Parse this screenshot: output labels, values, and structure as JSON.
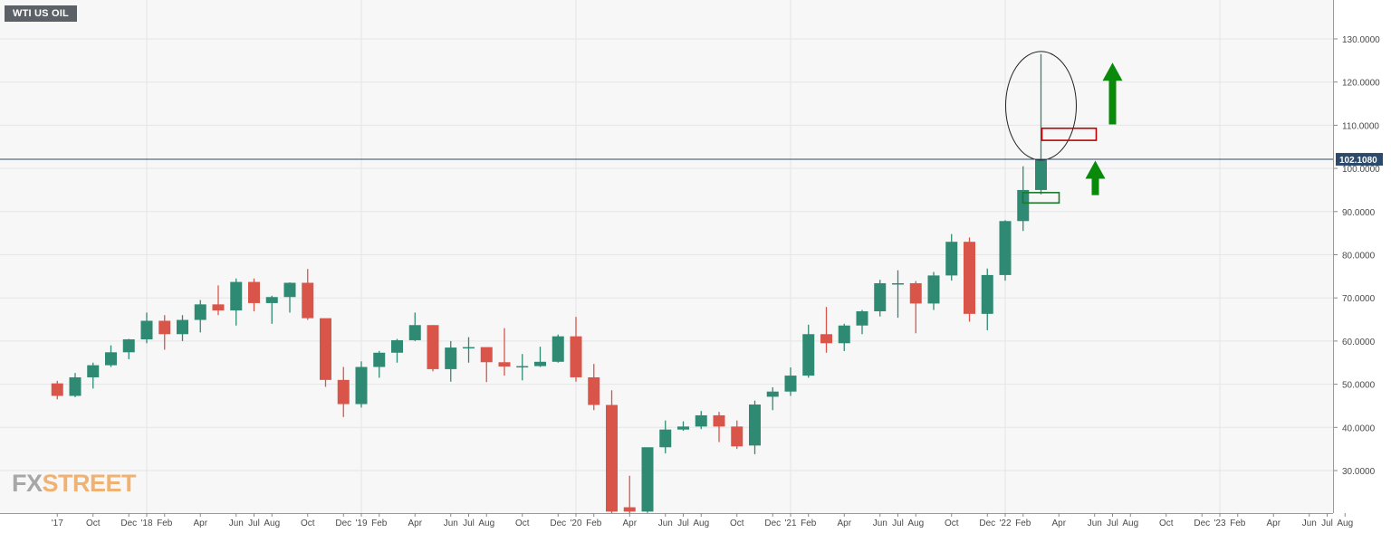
{
  "symbol_badge": "WTI US OIL",
  "brand": {
    "fx": "FX",
    "street": "STREET"
  },
  "colors": {
    "up": "#2f8a73",
    "down": "#d9554a",
    "current_line": "#2d4a6b",
    "price_label_bg": "#2d4a6b",
    "arrow": "#0a8a0a",
    "grid": "#e6e6e6",
    "plot_bg": "#f7f7f7"
  },
  "chart_data": {
    "type": "candlestick",
    "interval": "monthly",
    "title": "",
    "ylim": [
      20,
      140
    ],
    "y_ticks": [
      "30.0000",
      "40.0000",
      "50.0000",
      "60.0000",
      "70.0000",
      "80.0000",
      "90.0000",
      "100.0000",
      "110.0000",
      "120.0000",
      "130.0000"
    ],
    "x_labels": [
      "'17",
      "Oct",
      "Dec",
      "'18",
      "Feb",
      "Apr",
      "Jun",
      "Jul",
      "Aug",
      "Oct",
      "Dec",
      "'19",
      "Feb",
      "Apr",
      "Jun",
      "Jul",
      "Aug",
      "Oct",
      "Dec",
      "'20",
      "Feb",
      "Apr",
      "Jun",
      "Jul",
      "Aug",
      "Oct",
      "Dec",
      "'21",
      "Feb",
      "Apr",
      "Jun",
      "Jul",
      "Aug",
      "Oct",
      "Dec",
      "'22",
      "Feb",
      "Apr",
      "Jun",
      "Jul",
      "Aug",
      "Oct",
      "Dec",
      "'23",
      "Feb",
      "Apr",
      "Jun",
      "Jul",
      "Aug"
    ],
    "current_price": "102.1080",
    "candles": [
      {
        "date": "2017-08",
        "open": 50.2,
        "high": 50.8,
        "low": 46.5,
        "close": 47.3
      },
      {
        "date": "2017-09",
        "open": 47.3,
        "high": 52.6,
        "low": 47.0,
        "close": 51.6
      },
      {
        "date": "2017-10",
        "open": 51.6,
        "high": 55.0,
        "low": 49.0,
        "close": 54.4
      },
      {
        "date": "2017-11",
        "open": 54.4,
        "high": 59.0,
        "low": 54.0,
        "close": 57.4
      },
      {
        "date": "2017-12",
        "open": 57.4,
        "high": 60.5,
        "low": 55.8,
        "close": 60.4
      },
      {
        "date": "2018-01",
        "open": 60.4,
        "high": 66.6,
        "low": 59.5,
        "close": 64.7
      },
      {
        "date": "2018-02",
        "open": 64.7,
        "high": 66.0,
        "low": 58.0,
        "close": 61.6
      },
      {
        "date": "2018-03",
        "open": 61.6,
        "high": 66.0,
        "low": 60.0,
        "close": 64.9
      },
      {
        "date": "2018-04",
        "open": 64.9,
        "high": 69.5,
        "low": 62.0,
        "close": 68.5
      },
      {
        "date": "2018-05",
        "open": 68.5,
        "high": 72.9,
        "low": 66.0,
        "close": 67.1
      },
      {
        "date": "2018-06",
        "open": 67.1,
        "high": 74.5,
        "low": 63.6,
        "close": 73.7
      },
      {
        "date": "2018-07",
        "open": 73.7,
        "high": 74.5,
        "low": 66.9,
        "close": 68.8
      },
      {
        "date": "2018-08",
        "open": 68.8,
        "high": 70.5,
        "low": 64.0,
        "close": 70.2
      },
      {
        "date": "2018-09",
        "open": 70.2,
        "high": 73.6,
        "low": 66.6,
        "close": 73.5
      },
      {
        "date": "2018-10",
        "open": 73.5,
        "high": 76.7,
        "low": 64.9,
        "close": 65.3
      },
      {
        "date": "2018-11",
        "open": 65.3,
        "high": 65.0,
        "low": 49.4,
        "close": 51.0
      },
      {
        "date": "2018-12",
        "open": 51.0,
        "high": 54.0,
        "low": 42.4,
        "close": 45.4
      },
      {
        "date": "2019-01",
        "open": 45.4,
        "high": 55.3,
        "low": 44.6,
        "close": 54.0
      },
      {
        "date": "2019-02",
        "open": 54.0,
        "high": 57.7,
        "low": 51.5,
        "close": 57.3
      },
      {
        "date": "2019-03",
        "open": 57.3,
        "high": 60.5,
        "low": 55.0,
        "close": 60.2
      },
      {
        "date": "2019-04",
        "open": 60.2,
        "high": 66.6,
        "low": 60.0,
        "close": 63.7
      },
      {
        "date": "2019-05",
        "open": 63.7,
        "high": 63.7,
        "low": 53.0,
        "close": 53.5
      },
      {
        "date": "2019-06",
        "open": 53.5,
        "high": 60.0,
        "low": 50.6,
        "close": 58.5
      },
      {
        "date": "2019-07",
        "open": 58.5,
        "high": 60.9,
        "low": 55.0,
        "close": 58.6
      },
      {
        "date": "2019-08",
        "open": 58.6,
        "high": 57.5,
        "low": 50.5,
        "close": 55.1
      },
      {
        "date": "2019-09",
        "open": 55.1,
        "high": 63.0,
        "low": 52.0,
        "close": 54.1
      },
      {
        "date": "2019-10",
        "open": 54.1,
        "high": 57.0,
        "low": 50.9,
        "close": 54.2
      },
      {
        "date": "2019-11",
        "open": 54.2,
        "high": 58.7,
        "low": 54.0,
        "close": 55.2
      },
      {
        "date": "2019-12",
        "open": 55.2,
        "high": 61.5,
        "low": 55.0,
        "close": 61.1
      },
      {
        "date": "2020-01",
        "open": 61.1,
        "high": 65.6,
        "low": 50.6,
        "close": 51.6
      },
      {
        "date": "2020-02",
        "open": 51.6,
        "high": 54.7,
        "low": 44.0,
        "close": 45.2
      },
      {
        "date": "2020-03",
        "open": 45.2,
        "high": 48.6,
        "low": 20.0,
        "close": 20.5
      },
      {
        "date": "2020-04",
        "open": 21.5,
        "high": 28.8,
        "low": 20.0,
        "close": 20.5
      },
      {
        "date": "2020-05",
        "open": 20.5,
        "high": 35.3,
        "low": 20.2,
        "close": 35.4
      },
      {
        "date": "2020-06",
        "open": 35.4,
        "high": 41.6,
        "low": 34.0,
        "close": 39.5
      },
      {
        "date": "2020-07",
        "open": 39.5,
        "high": 41.4,
        "low": 39.2,
        "close": 40.2
      },
      {
        "date": "2020-08",
        "open": 40.2,
        "high": 43.8,
        "low": 39.6,
        "close": 42.8
      },
      {
        "date": "2020-09",
        "open": 42.8,
        "high": 43.6,
        "low": 36.6,
        "close": 40.2
      },
      {
        "date": "2020-10",
        "open": 40.2,
        "high": 41.6,
        "low": 35.0,
        "close": 35.6
      },
      {
        "date": "2020-11",
        "open": 35.8,
        "high": 46.2,
        "low": 33.8,
        "close": 45.3
      },
      {
        "date": "2020-12",
        "open": 47.1,
        "high": 49.3,
        "low": 44.0,
        "close": 48.3
      },
      {
        "date": "2021-01",
        "open": 48.3,
        "high": 53.9,
        "low": 47.3,
        "close": 52.0
      },
      {
        "date": "2021-02",
        "open": 52.0,
        "high": 63.8,
        "low": 51.5,
        "close": 61.6
      },
      {
        "date": "2021-03",
        "open": 61.6,
        "high": 67.9,
        "low": 57.3,
        "close": 59.5
      },
      {
        "date": "2021-04",
        "open": 59.5,
        "high": 64.0,
        "low": 57.7,
        "close": 63.6
      },
      {
        "date": "2021-05",
        "open": 63.6,
        "high": 67.2,
        "low": 61.6,
        "close": 66.9
      },
      {
        "date": "2021-06",
        "open": 66.9,
        "high": 74.2,
        "low": 65.7,
        "close": 73.4
      },
      {
        "date": "2021-07",
        "open": 73.4,
        "high": 76.4,
        "low": 65.4,
        "close": 73.4
      },
      {
        "date": "2021-08",
        "open": 73.4,
        "high": 73.9,
        "low": 61.8,
        "close": 68.7
      },
      {
        "date": "2021-09",
        "open": 68.7,
        "high": 76.0,
        "low": 67.2,
        "close": 75.2
      },
      {
        "date": "2021-10",
        "open": 75.2,
        "high": 84.8,
        "low": 74.0,
        "close": 83.0
      },
      {
        "date": "2021-11",
        "open": 83.0,
        "high": 84.0,
        "low": 64.5,
        "close": 66.3
      },
      {
        "date": "2021-12",
        "open": 66.3,
        "high": 76.8,
        "low": 62.5,
        "close": 75.3
      },
      {
        "date": "2022-01",
        "open": 75.3,
        "high": 88.0,
        "low": 74.0,
        "close": 87.8
      },
      {
        "date": "2022-02",
        "open": 87.8,
        "high": 100.5,
        "low": 85.5,
        "close": 95.0
      },
      {
        "date": "2022-03",
        "open": 95.0,
        "high": 126.5,
        "low": 94.0,
        "close": 102.1
      }
    ],
    "annotations": [
      {
        "type": "ellipse",
        "label": ""
      },
      {
        "type": "rectangle",
        "level": 108,
        "color": "#d9554a"
      },
      {
        "type": "rectangle",
        "level": 93,
        "color": "#2f8a73"
      },
      {
        "type": "arrow-up",
        "color": "#0a8a0a"
      },
      {
        "type": "arrow-up",
        "color": "#0a8a0a"
      }
    ]
  }
}
